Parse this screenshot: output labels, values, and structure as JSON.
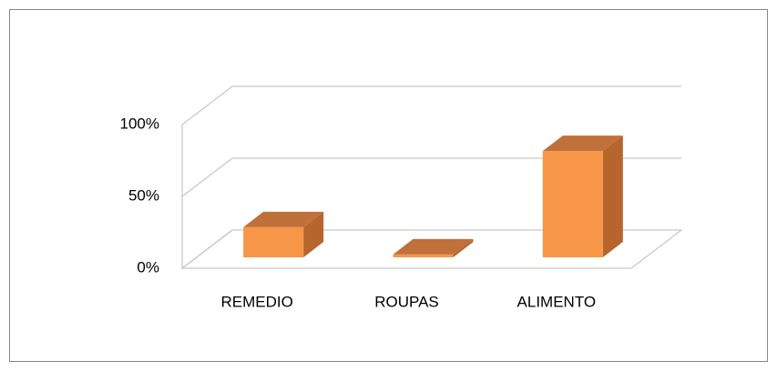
{
  "chart_data": {
    "type": "bar3d",
    "categories": [
      "REMEDIO",
      "ROUPAS",
      "ALIMENTO"
    ],
    "values": [
      21,
      2,
      74
    ],
    "color": "#f79646",
    "ylim": [
      0,
      100
    ],
    "yticks": [
      {
        "value": 0,
        "label": "0%"
      },
      {
        "value": 50,
        "label": "50%"
      },
      {
        "value": 100,
        "label": "100%"
      }
    ],
    "grid": true
  }
}
